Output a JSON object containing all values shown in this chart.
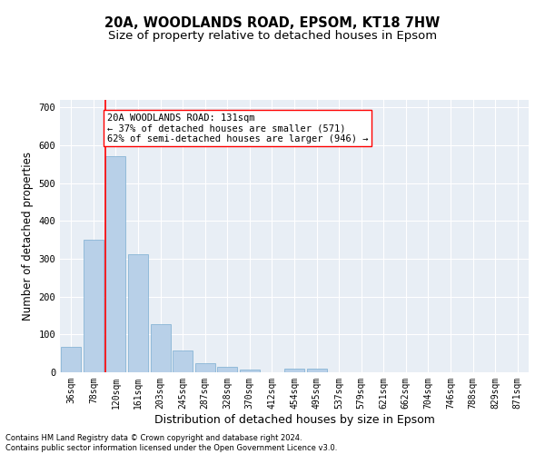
{
  "title_line1": "20A, WOODLANDS ROAD, EPSOM, KT18 7HW",
  "title_line2": "Size of property relative to detached houses in Epsom",
  "xlabel": "Distribution of detached houses by size in Epsom",
  "ylabel": "Number of detached properties",
  "footnote": "Contains HM Land Registry data © Crown copyright and database right 2024.\nContains public sector information licensed under the Open Government Licence v3.0.",
  "categories": [
    "36sqm",
    "78sqm",
    "120sqm",
    "161sqm",
    "203sqm",
    "245sqm",
    "287sqm",
    "328sqm",
    "370sqm",
    "412sqm",
    "454sqm",
    "495sqm",
    "537sqm",
    "579sqm",
    "621sqm",
    "662sqm",
    "704sqm",
    "746sqm",
    "788sqm",
    "829sqm",
    "871sqm"
  ],
  "values": [
    68,
    350,
    571,
    311,
    128,
    57,
    25,
    14,
    8,
    0,
    9,
    10,
    0,
    0,
    0,
    0,
    0,
    0,
    0,
    0,
    0
  ],
  "bar_color": "#b8d0e8",
  "bar_edge_color": "#7aadd0",
  "highlight_bar_index": 2,
  "highlight_color": "red",
  "annotation_text": "20A WOODLANDS ROAD: 131sqm\n← 37% of detached houses are smaller (571)\n62% of semi-detached houses are larger (946) →",
  "annotation_box_color": "white",
  "annotation_box_edge": "red",
  "ylim": [
    0,
    720
  ],
  "yticks": [
    0,
    100,
    200,
    300,
    400,
    500,
    600,
    700
  ],
  "bg_color": "#e8eef5",
  "grid_color": "white",
  "title_fontsize": 10.5,
  "subtitle_fontsize": 9.5,
  "axis_label_fontsize": 8.5,
  "tick_fontsize": 7,
  "annotation_fontsize": 7.5,
  "footnote_fontsize": 6
}
